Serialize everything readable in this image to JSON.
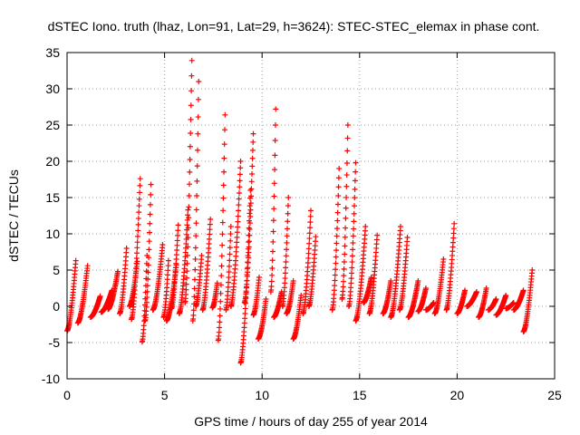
{
  "chart_data": {
    "type": "scatter",
    "title": "dSTEC Iono. truth (lhaz, Lon=91, Lat=29, h=3624): STEC-STEC_elemax in phase cont.",
    "xlabel": "GPS time / hours of day 255 of year 2014",
    "ylabel": "dSTEC  / TECUs",
    "xlim": [
      0,
      25
    ],
    "ylim": [
      -10,
      35
    ],
    "xticks": [
      0,
      5,
      10,
      15,
      20,
      25
    ],
    "yticks": [
      -10,
      -5,
      0,
      5,
      10,
      15,
      20,
      25,
      30,
      35
    ],
    "grid": true,
    "marker": "+",
    "color": "#ff0000",
    "series": [
      {
        "name": "dSTEC",
        "arcs": [
          {
            "start": 0.0,
            "end": 0.45,
            "from": -3.4,
            "to": 6.3
          },
          {
            "start": 0.55,
            "end": 1.05,
            "from": -2.3,
            "to": 5.6
          },
          {
            "start": 1.2,
            "end": 1.7,
            "from": -1.5,
            "to": 1.4
          },
          {
            "start": 1.75,
            "end": 2.3,
            "from": -0.8,
            "to": 2.2
          },
          {
            "start": 2.1,
            "end": 2.6,
            "from": -0.4,
            "to": 4.8
          },
          {
            "start": 2.7,
            "end": 3.05,
            "from": -1.0,
            "to": 8.0
          },
          {
            "start": 3.2,
            "end": 3.6,
            "from": 0.0,
            "to": 6.2
          },
          {
            "start": 3.3,
            "end": 3.75,
            "from": -1.8,
            "to": 17.6
          },
          {
            "start": 3.85,
            "end": 4.1,
            "from": -4.9,
            "to": 7.0
          },
          {
            "start": 4.0,
            "end": 4.3,
            "from": -2.0,
            "to": 16.8
          },
          {
            "start": 4.4,
            "end": 4.9,
            "from": -0.5,
            "to": 8.5
          },
          {
            "start": 4.95,
            "end": 5.2,
            "from": -1.5,
            "to": 6.3
          },
          {
            "start": 5.1,
            "end": 5.6,
            "from": -2.0,
            "to": 5.7
          },
          {
            "start": 5.35,
            "end": 5.7,
            "from": -0.3,
            "to": 11.2
          },
          {
            "start": 5.75,
            "end": 6.2,
            "from": -1.0,
            "to": 13.3
          },
          {
            "start": 6.05,
            "end": 6.4,
            "from": 0.5,
            "to": 33.9
          },
          {
            "start": 6.45,
            "end": 6.75,
            "from": -2.0,
            "to": 31.0
          },
          {
            "start": 6.6,
            "end": 6.9,
            "from": 0.0,
            "to": 7.0
          },
          {
            "start": 6.95,
            "end": 7.35,
            "from": -0.5,
            "to": 12.0
          },
          {
            "start": 7.45,
            "end": 7.7,
            "from": -0.2,
            "to": 3.2
          },
          {
            "start": 7.75,
            "end": 8.1,
            "from": -4.7,
            "to": 26.4
          },
          {
            "start": 8.15,
            "end": 8.4,
            "from": -0.5,
            "to": 11.0
          },
          {
            "start": 8.4,
            "end": 8.9,
            "from": 0.0,
            "to": 20.0
          },
          {
            "start": 8.9,
            "end": 9.4,
            "from": -7.8,
            "to": 16.0
          },
          {
            "start": 9.1,
            "end": 9.55,
            "from": 0.5,
            "to": 23.8
          },
          {
            "start": 9.55,
            "end": 9.85,
            "from": -1.2,
            "to": 4.0
          },
          {
            "start": 9.8,
            "end": 10.2,
            "from": -4.5,
            "to": 1.0
          },
          {
            "start": 10.45,
            "end": 10.7,
            "from": 2.0,
            "to": 27.2
          },
          {
            "start": 10.6,
            "end": 11.0,
            "from": -1.5,
            "to": 2.0
          },
          {
            "start": 11.05,
            "end": 11.35,
            "from": 0.0,
            "to": 15.0
          },
          {
            "start": 11.25,
            "end": 11.6,
            "from": -1.0,
            "to": 3.5
          },
          {
            "start": 11.6,
            "end": 12.0,
            "from": -4.5,
            "to": 1.5
          },
          {
            "start": 12.1,
            "end": 12.5,
            "from": -1.0,
            "to": 13.2
          },
          {
            "start": 12.4,
            "end": 12.75,
            "from": 0.0,
            "to": 9.6
          },
          {
            "start": 13.6,
            "end": 13.95,
            "from": -0.5,
            "to": 19.0
          },
          {
            "start": 14.1,
            "end": 14.4,
            "from": 1.0,
            "to": 25.0
          },
          {
            "start": 14.45,
            "end": 14.8,
            "from": 0.0,
            "to": 19.8
          },
          {
            "start": 14.8,
            "end": 15.3,
            "from": -2.0,
            "to": 11.0
          },
          {
            "start": 15.2,
            "end": 15.6,
            "from": 0.5,
            "to": 4.0
          },
          {
            "start": 15.5,
            "end": 15.9,
            "from": -1.0,
            "to": 9.8
          },
          {
            "start": 16.2,
            "end": 16.6,
            "from": -1.0,
            "to": 3.5
          },
          {
            "start": 16.6,
            "end": 17.1,
            "from": -1.5,
            "to": 11.0
          },
          {
            "start": 17.05,
            "end": 17.45,
            "from": -0.5,
            "to": 9.5
          },
          {
            "start": 17.5,
            "end": 18.0,
            "from": -1.5,
            "to": 3.5
          },
          {
            "start": 18.0,
            "end": 18.4,
            "from": -0.7,
            "to": 2.5
          },
          {
            "start": 18.4,
            "end": 18.8,
            "from": -0.5,
            "to": 0.5
          },
          {
            "start": 18.85,
            "end": 19.3,
            "from": -1.0,
            "to": 6.5
          },
          {
            "start": 19.45,
            "end": 19.85,
            "from": -0.5,
            "to": 11.4
          },
          {
            "start": 20.0,
            "end": 20.4,
            "from": -1.0,
            "to": 2.2
          },
          {
            "start": 20.5,
            "end": 21.0,
            "from": 0.0,
            "to": 2.0
          },
          {
            "start": 21.1,
            "end": 21.5,
            "from": -1.5,
            "to": 2.5
          },
          {
            "start": 21.6,
            "end": 22.0,
            "from": -0.5,
            "to": 1.0
          },
          {
            "start": 22.0,
            "end": 22.5,
            "from": -1.2,
            "to": 1.5
          },
          {
            "start": 22.5,
            "end": 22.9,
            "from": -0.3,
            "to": 0.5
          },
          {
            "start": 22.9,
            "end": 23.4,
            "from": -0.5,
            "to": 2.2
          },
          {
            "start": 23.4,
            "end": 23.85,
            "from": -3.5,
            "to": 5.0
          }
        ]
      }
    ]
  }
}
